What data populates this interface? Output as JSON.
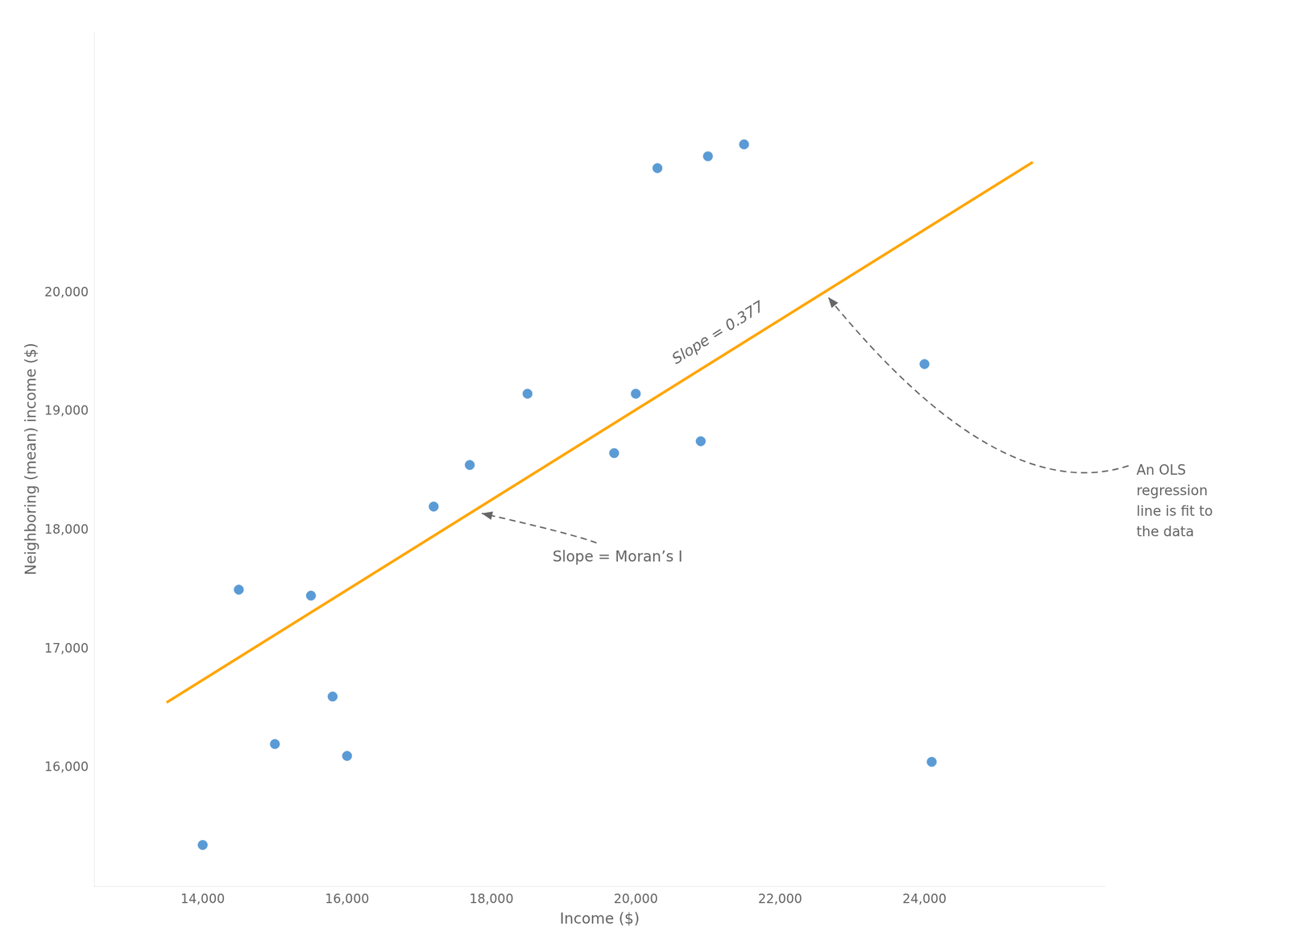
{
  "chart_data": {
    "type": "scatter",
    "xlabel": "Income ($)",
    "ylabel": "Neighboring (mean) income ($)",
    "series": [
      {
        "type": "scatter",
        "color": "#5b9bd5",
        "x": [
          14000,
          14500,
          15000,
          15500,
          15800,
          16000,
          17200,
          17700,
          18500,
          19700,
          20000,
          20300,
          20900,
          21000,
          21500,
          24000,
          24100
        ],
        "values": [
          15350,
          17500,
          16200,
          17450,
          16600,
          16100,
          18200,
          18550,
          19150,
          18650,
          19150,
          21050,
          18750,
          21150,
          21250,
          19400,
          16050
        ]
      },
      {
        "type": "line",
        "color": "#FFA500",
        "x": [
          13500,
          25500
        ],
        "values": [
          16550,
          21100
        ]
      }
    ],
    "xlim": [
      12500,
      26500
    ],
    "ylim": [
      15000,
      22200
    ],
    "xticks": [
      {
        "value": 14000,
        "label": "14,000"
      },
      {
        "value": 16000,
        "label": "16,000"
      },
      {
        "value": 18000,
        "label": "18,000"
      },
      {
        "value": 20000,
        "label": "20,000"
      },
      {
        "value": 22000,
        "label": "22,000"
      },
      {
        "value": 24000,
        "label": "24,000"
      }
    ],
    "yticks": [
      {
        "value": 16000,
        "label": "16,000"
      },
      {
        "value": 17000,
        "label": "17,000"
      },
      {
        "value": 18000,
        "label": "18,000"
      },
      {
        "value": 19000,
        "label": "19,000"
      },
      {
        "value": 20000,
        "label": "20,000"
      }
    ],
    "annotations": [
      "Slope = 0.377",
      "Slope = Moran’s I",
      "An OLS\nregression\nline is fit to\nthe data"
    ],
    "grid": false
  }
}
